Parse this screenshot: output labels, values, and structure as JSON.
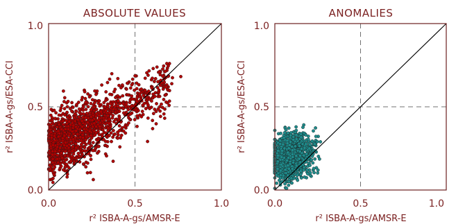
{
  "chart_data": [
    {
      "type": "scatter",
      "title": "ABSOLUTE VALUES",
      "xlabel": "r² ISBA-A-gs/AMSR-E",
      "ylabel": "r² ISBA-A-gs/ESA-CCI",
      "xlim": [
        0,
        1
      ],
      "ylim": [
        0,
        1
      ],
      "xticks": [
        "0.0",
        "0.5",
        "1.0"
      ],
      "yticks": [
        "0.0",
        "0.5",
        "1.0"
      ],
      "reference_lines": {
        "diagonal": "1:1",
        "dashed_x": 0.5,
        "dashed_y": 0.5
      },
      "point_color": "#b00000",
      "point_count_approx": 1400,
      "cloud": {
        "x_range": [
          0.0,
          0.8
        ],
        "y_range": [
          0.0,
          0.76
        ],
        "centroid": [
          0.18,
          0.3
        ]
      }
    },
    {
      "type": "scatter",
      "title": "ANOMALIES",
      "xlabel": "r² ISBA-A-gs/AMSR-E",
      "ylabel": "r² ISBA-A-gs/ESA-CCI",
      "xlim": [
        0,
        1
      ],
      "ylim": [
        0,
        1
      ],
      "xticks": [
        "0.0",
        "0.5",
        "1.0"
      ],
      "yticks": [
        "0.0",
        "0.5",
        "1.0"
      ],
      "reference_lines": {
        "diagonal": "1:1",
        "dashed_x": 0.5,
        "dashed_y": 0.5
      },
      "point_color": "#1f8c8c",
      "point_count_approx": 1200,
      "cloud": {
        "x_range": [
          0.0,
          0.28
        ],
        "y_range": [
          0.0,
          0.45
        ],
        "centroid": [
          0.09,
          0.2
        ]
      }
    }
  ],
  "colors": {
    "frame": "#6b1f1f",
    "text": "#7a1f1f",
    "dash": "#707070",
    "diagonal": "#000000"
  }
}
